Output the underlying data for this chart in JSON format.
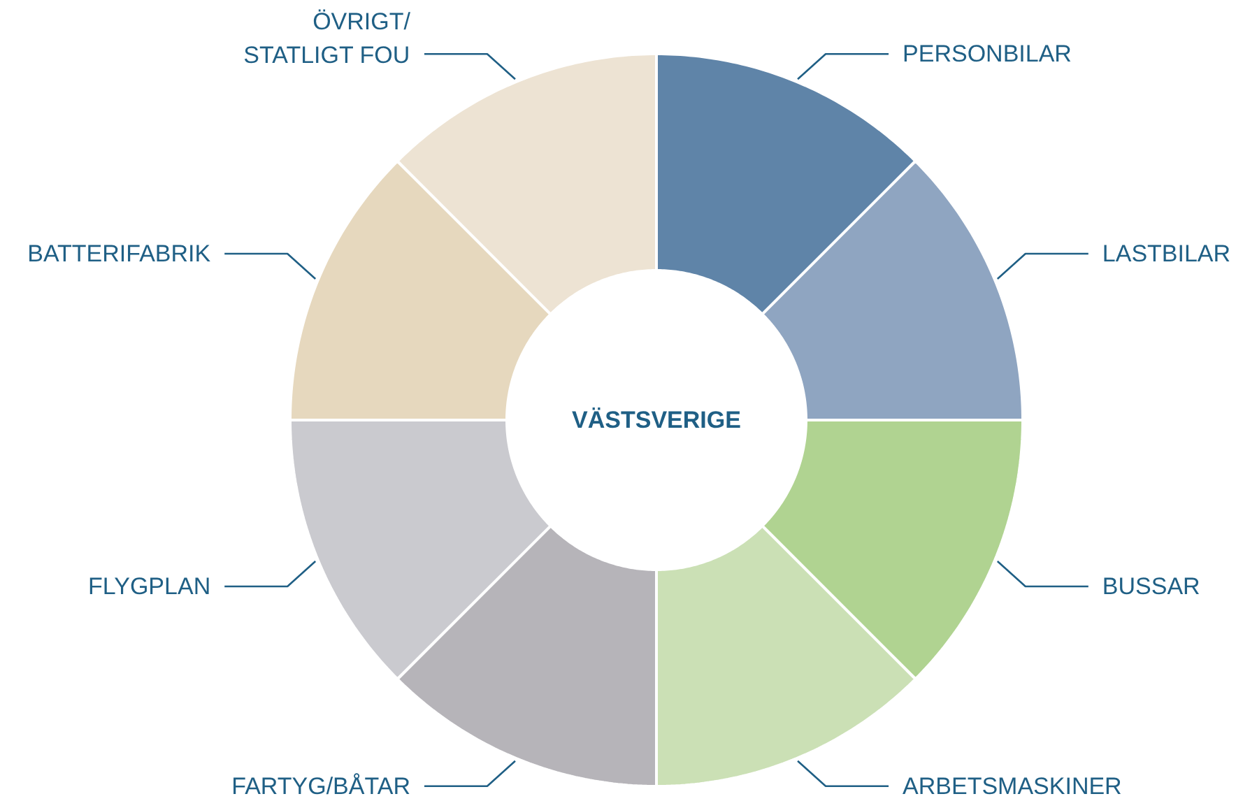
{
  "chart_data": {
    "type": "donut",
    "title": "VÄSTSVERIGE",
    "categories": [
      "PERSONBILAR",
      "LASTBILAR",
      "BUSSAR",
      "ARBETSMASKINER",
      "FARTYG/BÅTAR",
      "FLYGPLAN",
      "BATTERIFABRIK",
      "ÖVRIGT/\nSTATLIGT FOU"
    ],
    "values": [
      12.5,
      12.5,
      12.5,
      12.5,
      12.5,
      12.5,
      12.5,
      12.5
    ],
    "colors": [
      "#5f84a8",
      "#8fa5c1",
      "#b0d391",
      "#cbe0b5",
      "#b6b4b9",
      "#cacacf",
      "#e6d8be",
      "#ede3d3"
    ]
  }
}
